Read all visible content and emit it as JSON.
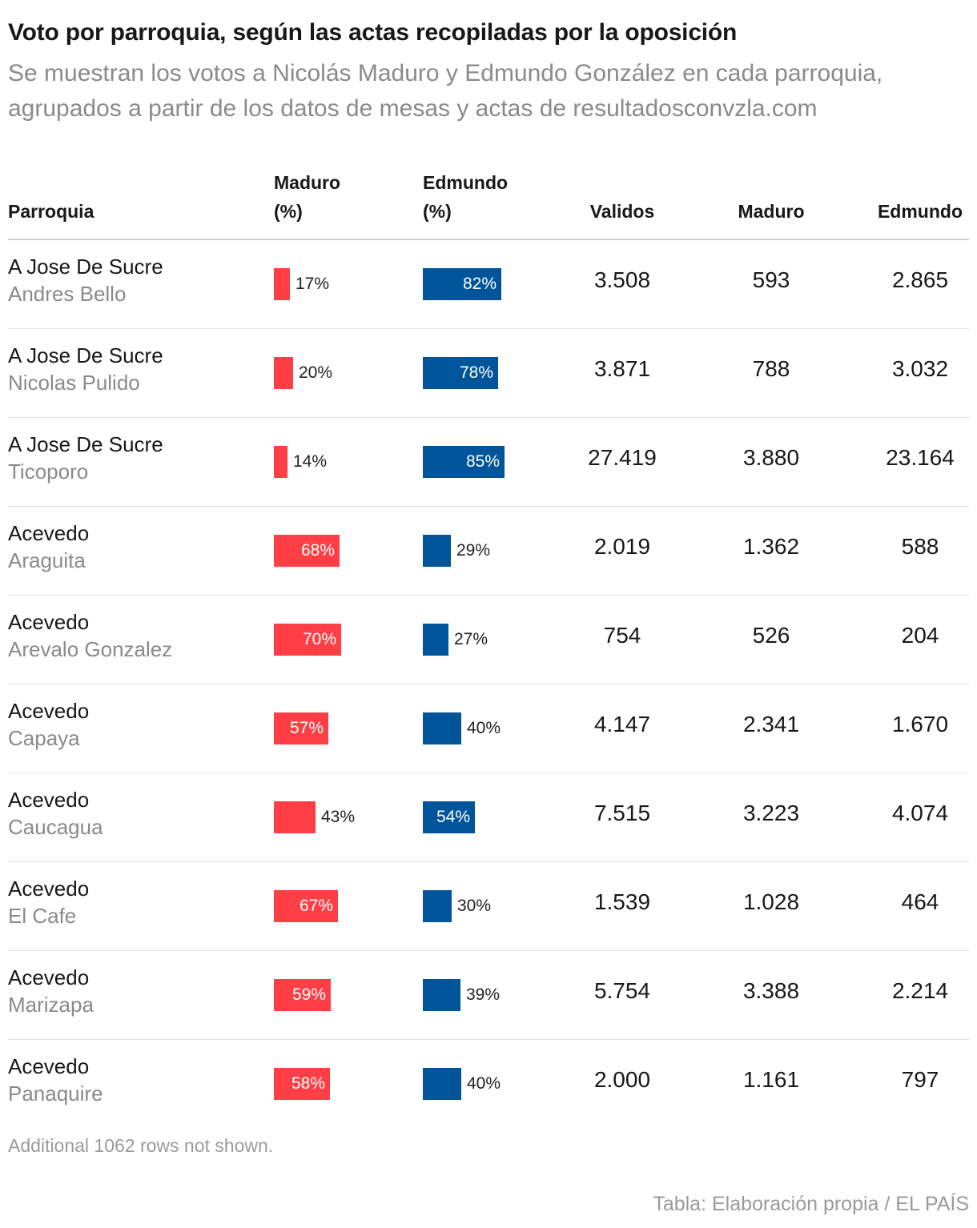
{
  "header": {
    "title": "Voto por parroquia, según las actas recopiladas por la oposición",
    "subtitle": "Se muestran los votos a Nicolás Maduro y Edmundo González en cada parroquia, agrupados a partir de los datos de mesas y actas de resultadosconvzla.com"
  },
  "columns": {
    "parroquia": "Parroquia",
    "maduro_pct_line1": "Maduro",
    "maduro_pct_line2": "(%)",
    "edmundo_pct_line1": "Edmundo",
    "edmundo_pct_line2": "(%)",
    "validos": "Validos",
    "maduro": "Maduro",
    "edmundo": "Edmundo"
  },
  "colors": {
    "maduro": "#ff3f45",
    "edmundo": "#00559a"
  },
  "chart_data": {
    "type": "table",
    "columns": [
      "Parroquia",
      "Maduro (%)",
      "Edmundo (%)",
      "Validos",
      "Maduro",
      "Edmundo"
    ],
    "rows": [
      {
        "municipio": "A Jose De Sucre",
        "parroquia": "Andres Bello",
        "maduro_pct": 17,
        "edmundo_pct": 82,
        "maduro_pct_label": "17%",
        "edmundo_pct_label": "82%",
        "validos": "3.508",
        "maduro": "593",
        "edmundo": "2.865"
      },
      {
        "municipio": "A Jose De Sucre",
        "parroquia": "Nicolas Pulido",
        "maduro_pct": 20,
        "edmundo_pct": 78,
        "maduro_pct_label": "20%",
        "edmundo_pct_label": "78%",
        "validos": "3.871",
        "maduro": "788",
        "edmundo": "3.032"
      },
      {
        "municipio": "A Jose De Sucre",
        "parroquia": "Ticoporo",
        "maduro_pct": 14,
        "edmundo_pct": 85,
        "maduro_pct_label": "14%",
        "edmundo_pct_label": "85%",
        "validos": "27.419",
        "maduro": "3.880",
        "edmundo": "23.164"
      },
      {
        "municipio": "Acevedo",
        "parroquia": "Araguita",
        "maduro_pct": 68,
        "edmundo_pct": 29,
        "maduro_pct_label": "68%",
        "edmundo_pct_label": "29%",
        "validos": "2.019",
        "maduro": "1.362",
        "edmundo": "588"
      },
      {
        "municipio": "Acevedo",
        "parroquia": "Arevalo Gonzalez",
        "maduro_pct": 70,
        "edmundo_pct": 27,
        "maduro_pct_label": "70%",
        "edmundo_pct_label": "27%",
        "validos": "754",
        "maduro": "526",
        "edmundo": "204"
      },
      {
        "municipio": "Acevedo",
        "parroquia": "Capaya",
        "maduro_pct": 57,
        "edmundo_pct": 40,
        "maduro_pct_label": "57%",
        "edmundo_pct_label": "40%",
        "validos": "4.147",
        "maduro": "2.341",
        "edmundo": "1.670"
      },
      {
        "municipio": "Acevedo",
        "parroquia": "Caucagua",
        "maduro_pct": 43,
        "edmundo_pct": 54,
        "maduro_pct_label": "43%",
        "edmundo_pct_label": "54%",
        "validos": "7.515",
        "maduro": "3.223",
        "edmundo": "4.074"
      },
      {
        "municipio": "Acevedo",
        "parroquia": "El Cafe",
        "maduro_pct": 67,
        "edmundo_pct": 30,
        "maduro_pct_label": "67%",
        "edmundo_pct_label": "30%",
        "validos": "1.539",
        "maduro": "1.028",
        "edmundo": "464"
      },
      {
        "municipio": "Acevedo",
        "parroquia": "Marizapa",
        "maduro_pct": 59,
        "edmundo_pct": 39,
        "maduro_pct_label": "59%",
        "edmundo_pct_label": "39%",
        "validos": "5.754",
        "maduro": "3.388",
        "edmundo": "2.214"
      },
      {
        "municipio": "Acevedo",
        "parroquia": "Panaquire",
        "maduro_pct": 58,
        "edmundo_pct": 40,
        "maduro_pct_label": "58%",
        "edmundo_pct_label": "40%",
        "validos": "2.000",
        "maduro": "1.161",
        "edmundo": "797"
      }
    ]
  },
  "footer": {
    "note": "Additional 1062 rows not shown.",
    "source": "Tabla: Elaboración propia / EL PAÍS"
  }
}
